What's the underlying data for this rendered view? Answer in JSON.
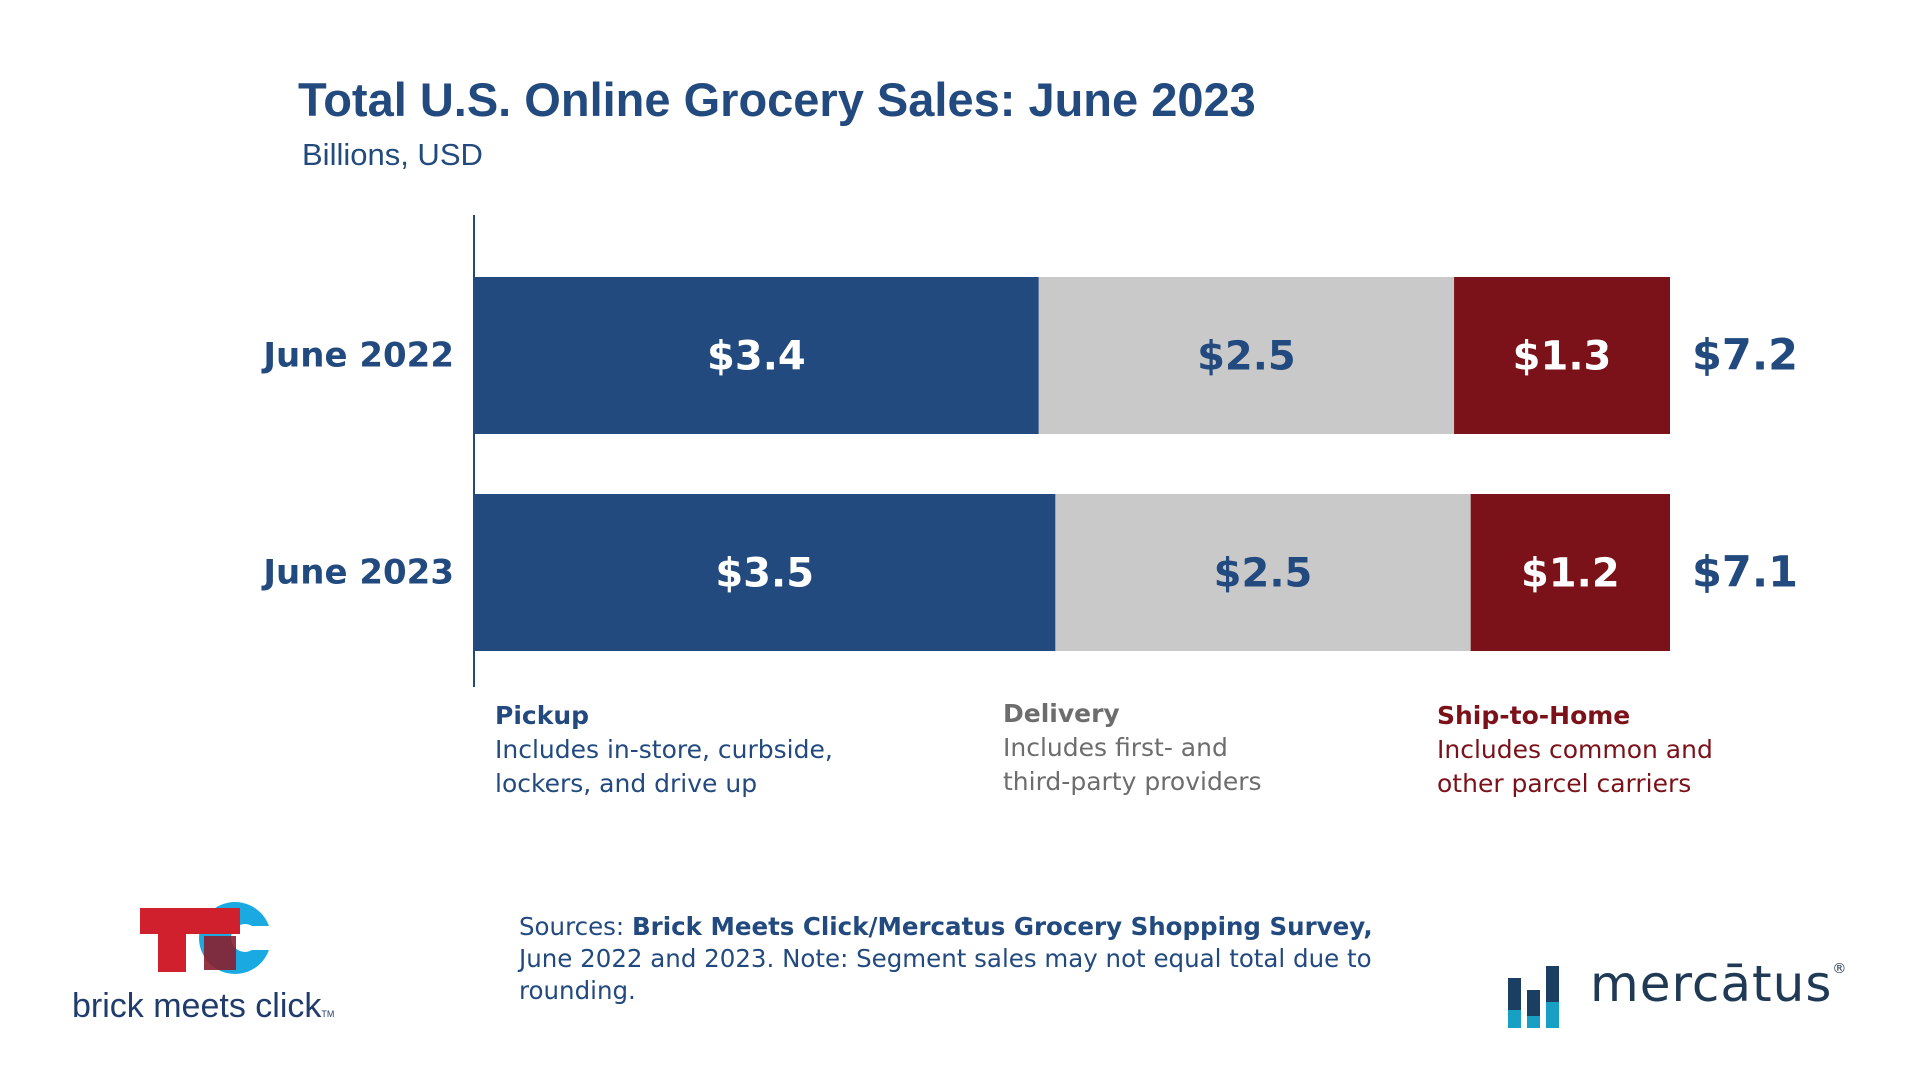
{
  "chart_data": {
    "type": "bar",
    "orientation": "horizontal",
    "stacked": true,
    "title": "Total U.S. Online Grocery Sales: June 2023",
    "subtitle": "Billions, USD",
    "categories": [
      "June 2022",
      "June 2023"
    ],
    "series": [
      {
        "name": "Pickup",
        "values": [
          3.4,
          3.5
        ],
        "labels": [
          "$3.4",
          "$3.5"
        ],
        "color": "#224a7f",
        "label_color": "#ffffff"
      },
      {
        "name": "Delivery",
        "values": [
          2.5,
          2.5
        ],
        "labels": [
          "$2.5",
          "$2.5"
        ],
        "color": "#c9c9c9",
        "label_color": "#224a7f"
      },
      {
        "name": "Ship-to-Home",
        "values": [
          1.3,
          1.2
        ],
        "labels": [
          "$1.3",
          "$1.2"
        ],
        "color": "#7b1219",
        "label_color": "#ffffff"
      }
    ],
    "totals": [
      7.2,
      7.1
    ],
    "total_labels": [
      "$7.2",
      "$7.1"
    ],
    "xlim": [
      0,
      7.2
    ],
    "grid": false
  },
  "legend": {
    "pickup": {
      "title": "Pickup",
      "line1": "Includes in-store, curbside,",
      "line2": "lockers, and drive up"
    },
    "delivery": {
      "title": "Delivery",
      "line1": "Includes first- and",
      "line2": "third-party providers"
    },
    "ship": {
      "title": "Ship-to-Home",
      "line1": "Includes common and",
      "line2": "other parcel carriers"
    }
  },
  "sources": {
    "prefix": "Sources: ",
    "bold": "Brick Meets Click/Mercatus Grocery Shopping Survey,",
    "rest": " June 2022 and 2023. Note: Segment sales may not equal total due to rounding."
  },
  "logos": {
    "bmc_text": "brick meets click",
    "bmc_tm": "TM",
    "mercatus_text": "mercātus",
    "mercatus_reg": "®"
  },
  "colors": {
    "brand_blue": "#224a7f",
    "grey": "#c9c9c9",
    "maroon": "#7b1219",
    "bmc_red": "#d0202e",
    "bmc_cyan": "#1aa9e0"
  }
}
